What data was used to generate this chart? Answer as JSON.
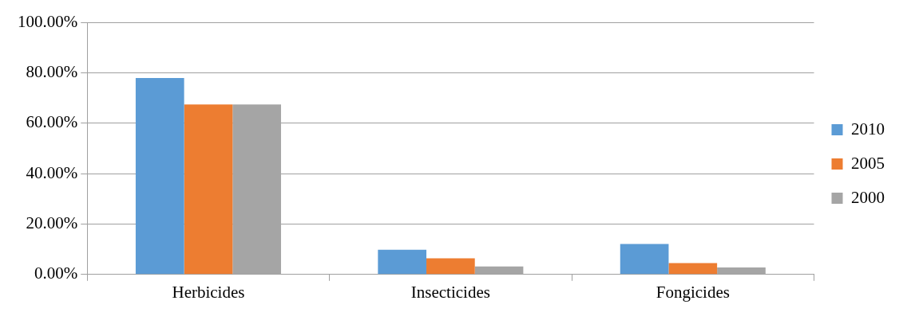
{
  "chart_data": {
    "type": "bar",
    "categories": [
      "Herbicides",
      "Insecticides",
      "Fongicides"
    ],
    "series": [
      {
        "name": "2010",
        "color": "#5b9bd5",
        "values": [
          77.9,
          9.8,
          12.1
        ]
      },
      {
        "name": "2005",
        "color": "#ed7d31",
        "values": [
          67.4,
          6.4,
          4.5
        ]
      },
      {
        "name": "2000",
        "color": "#a5a5a5",
        "values": [
          67.4,
          3.2,
          2.8
        ]
      }
    ],
    "ylim": [
      0,
      100
    ],
    "yticks": [
      {
        "value": 0,
        "label": "0.00%"
      },
      {
        "value": 20,
        "label": "20.00%"
      },
      {
        "value": 40,
        "label": "40.00%"
      },
      {
        "value": 60,
        "label": "60.00%"
      },
      {
        "value": 80,
        "label": "80.00%"
      },
      {
        "value": 100,
        "label": "100.00%"
      }
    ],
    "grid": "y",
    "legend": "right"
  }
}
